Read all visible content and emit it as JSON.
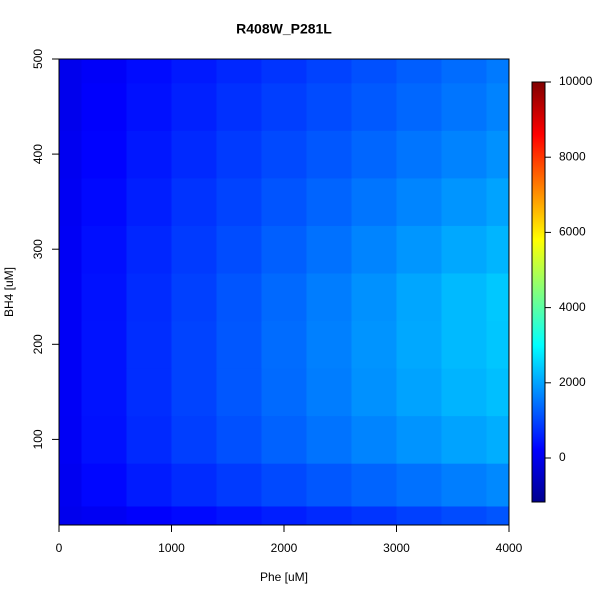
{
  "chart_data": {
    "type": "contour",
    "title": "R408W_P281L",
    "x_label": "Phe [uM]",
    "y_label": "BH4 [uM]",
    "x": [
      0,
      400,
      800,
      1200,
      1600,
      2000,
      2400,
      2800,
      3200,
      3600,
      4000
    ],
    "y": [
      10,
      50,
      100,
      150,
      200,
      250,
      300,
      350,
      400,
      450,
      500
    ],
    "z": [
      [
        0,
        80,
        200,
        320,
        440,
        560,
        680,
        800,
        920,
        1040,
        1150
      ],
      [
        60,
        300,
        520,
        700,
        860,
        1020,
        1170,
        1320,
        1460,
        1600,
        1720
      ],
      [
        100,
        400,
        680,
        900,
        1100,
        1290,
        1480,
        1660,
        1840,
        2000,
        2120
      ],
      [
        120,
        430,
        720,
        960,
        1170,
        1380,
        1590,
        1800,
        2000,
        2180,
        2300
      ],
      [
        120,
        430,
        720,
        960,
        1180,
        1400,
        1620,
        1840,
        2060,
        2250,
        2380
      ],
      [
        120,
        420,
        700,
        930,
        1150,
        1370,
        1590,
        1810,
        2030,
        2250,
        2400
      ],
      [
        100,
        380,
        640,
        860,
        1060,
        1260,
        1460,
        1660,
        1860,
        2050,
        2200
      ],
      [
        80,
        320,
        560,
        780,
        960,
        1140,
        1320,
        1500,
        1680,
        1850,
        2000
      ],
      [
        50,
        250,
        480,
        680,
        860,
        1020,
        1180,
        1340,
        1500,
        1650,
        1800
      ],
      [
        0,
        200,
        400,
        580,
        750,
        900,
        1050,
        1200,
        1350,
        1500,
        1650
      ],
      [
        0,
        150,
        350,
        500,
        650,
        800,
        950,
        1100,
        1250,
        1400,
        1550
      ]
    ],
    "xlim": [
      0,
      4000
    ],
    "xticks": [
      0,
      1000,
      2000,
      3000,
      4000
    ],
    "ylim": [
      10,
      500
    ],
    "yticks": [
      100,
      200,
      300,
      400,
      500
    ],
    "clim": [
      -1170,
      10000
    ],
    "cticks": [
      0,
      2000,
      4000,
      6000,
      8000,
      10000
    ],
    "colorscale": [
      [
        -1170,
        "#00008f"
      ],
      [
        230,
        "#0000ff"
      ],
      [
        3000,
        "#00ffff"
      ],
      [
        5800,
        "#ffff00"
      ],
      [
        8600,
        "#ff0000"
      ],
      [
        10000,
        "#800000"
      ]
    ]
  }
}
